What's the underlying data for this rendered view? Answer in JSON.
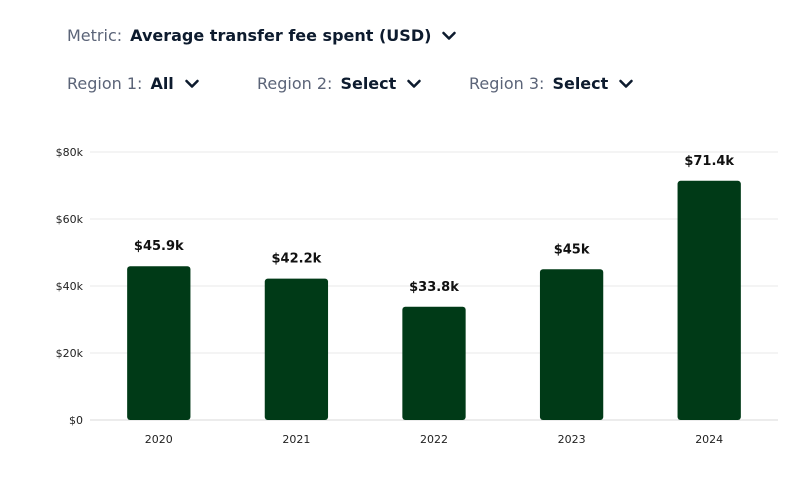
{
  "controls": {
    "metric": {
      "label": "Metric:",
      "value": "Average transfer fee spent (USD)",
      "icon": "chevron-down-icon"
    },
    "region1": {
      "label": "Region 1:",
      "value": "All",
      "icon": "chevron-down-icon"
    },
    "region2": {
      "label": "Region 2:",
      "value": "Select",
      "icon": "chevron-down-icon"
    },
    "region3": {
      "label": "Region 3:",
      "value": "Select",
      "icon": "chevron-down-icon"
    }
  },
  "colors": {
    "bar": "#003a17",
    "grid": "#e8e8e8",
    "text": "#1f2a44",
    "muted": "#5b6478"
  },
  "chart_data": {
    "type": "bar",
    "title": "",
    "xlabel": "",
    "ylabel": "",
    "categories": [
      "2020",
      "2021",
      "2022",
      "2023",
      "2024"
    ],
    "values": [
      45900,
      42200,
      33800,
      45000,
      71400
    ],
    "data_labels": [
      "$45.9k",
      "$42.2k",
      "$33.8k",
      "$45k",
      "$71.4k"
    ],
    "ylim": [
      0,
      80000
    ],
    "yticks": [
      0,
      20000,
      40000,
      60000,
      80000
    ],
    "ytick_labels": [
      "$0",
      "$20k",
      "$40k",
      "$60k",
      "$80k"
    ],
    "grid": true,
    "legend": "none"
  }
}
